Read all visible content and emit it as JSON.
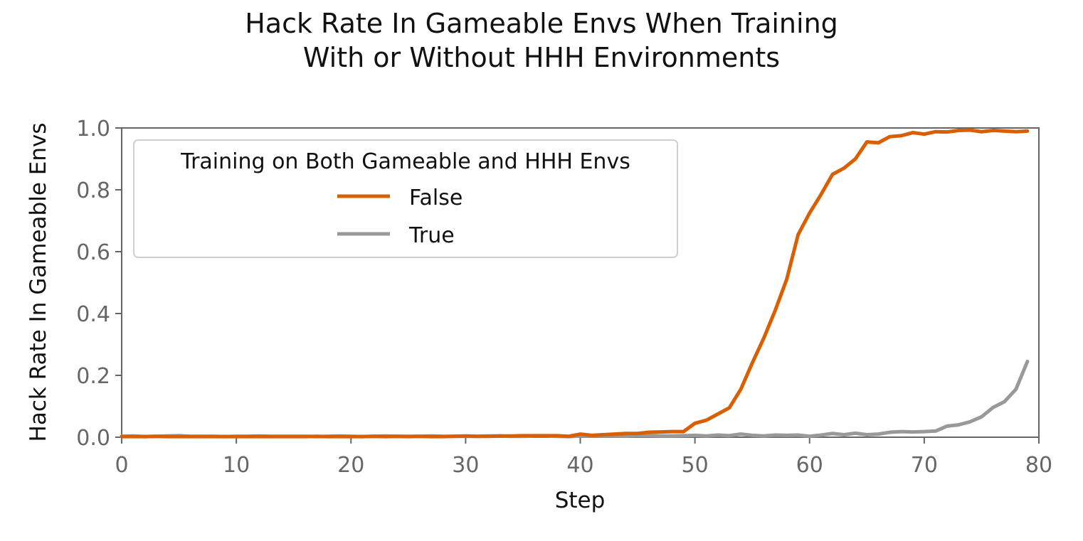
{
  "chart_data": {
    "type": "line",
    "title": [
      "Hack Rate In Gameable Envs When Training",
      "With or Without HHH Environments"
    ],
    "xlabel": "Step",
    "ylabel": "Hack Rate In Gameable Envs",
    "xlim": [
      0,
      80
    ],
    "ylim": [
      0,
      1.0
    ],
    "xticks": [
      "0",
      "10",
      "20",
      "30",
      "40",
      "50",
      "60",
      "70",
      "80"
    ],
    "yticks": [
      "0.0",
      "0.2",
      "0.4",
      "0.6",
      "0.8",
      "1.0"
    ],
    "grid": false,
    "legend": {
      "title": "Training on Both Gameable and HHH Envs",
      "placement": "upper-left"
    },
    "x": [
      0,
      1,
      2,
      3,
      4,
      5,
      6,
      7,
      8,
      9,
      10,
      11,
      12,
      13,
      14,
      15,
      16,
      17,
      18,
      19,
      20,
      21,
      22,
      23,
      24,
      25,
      26,
      27,
      28,
      29,
      30,
      31,
      32,
      33,
      34,
      35,
      36,
      37,
      38,
      39,
      40,
      41,
      42,
      43,
      44,
      45,
      46,
      47,
      48,
      49,
      50,
      51,
      52,
      53,
      54,
      55,
      56,
      57,
      58,
      59,
      60,
      61,
      62,
      63,
      64,
      65,
      66,
      67,
      68,
      69,
      70,
      71,
      72,
      73,
      74,
      75,
      76,
      77,
      78,
      79
    ],
    "series": [
      {
        "name": "False",
        "color": "#d95f02",
        "values": [
          0.002,
          0.002,
          0.002,
          0.003,
          0.002,
          0.002,
          0.002,
          0.002,
          0.002,
          0.002,
          0.002,
          0.002,
          0.002,
          0.002,
          0.002,
          0.002,
          0.002,
          0.003,
          0.002,
          0.002,
          0.002,
          0.002,
          0.003,
          0.002,
          0.003,
          0.002,
          0.003,
          0.002,
          0.002,
          0.003,
          0.004,
          0.003,
          0.003,
          0.004,
          0.004,
          0.005,
          0.005,
          0.005,
          0.005,
          0.003,
          0.01,
          0.006,
          0.008,
          0.01,
          0.012,
          0.012,
          0.016,
          0.017,
          0.018,
          0.018,
          0.045,
          0.055,
          0.075,
          0.095,
          0.155,
          0.24,
          0.32,
          0.41,
          0.51,
          0.655,
          0.725,
          0.785,
          0.85,
          0.87,
          0.9,
          0.955,
          0.952,
          0.972,
          0.975,
          0.985,
          0.98,
          0.988,
          0.987,
          0.992,
          0.993,
          0.988,
          0.992,
          0.99,
          0.988,
          0.99
        ]
      },
      {
        "name": "True",
        "color": "#999999",
        "values": [
          0.003,
          0.004,
          0.002,
          0.003,
          0.004,
          0.005,
          0.003,
          0.003,
          0.003,
          0.002,
          0.003,
          0.003,
          0.004,
          0.003,
          0.003,
          0.003,
          0.003,
          0.002,
          0.003,
          0.004,
          0.003,
          0.002,
          0.003,
          0.004,
          0.003,
          0.003,
          0.003,
          0.004,
          0.003,
          0.003,
          0.003,
          0.003,
          0.004,
          0.004,
          0.003,
          0.003,
          0.004,
          0.004,
          0.003,
          0.002,
          0.004,
          0.004,
          0.004,
          0.004,
          0.004,
          0.005,
          0.005,
          0.004,
          0.004,
          0.005,
          0.006,
          0.004,
          0.007,
          0.005,
          0.01,
          0.006,
          0.004,
          0.007,
          0.006,
          0.007,
          0.003,
          0.007,
          0.012,
          0.008,
          0.013,
          0.008,
          0.01,
          0.016,
          0.018,
          0.017,
          0.018,
          0.02,
          0.036,
          0.04,
          0.05,
          0.066,
          0.096,
          0.115,
          0.155,
          0.245
        ]
      }
    ]
  }
}
